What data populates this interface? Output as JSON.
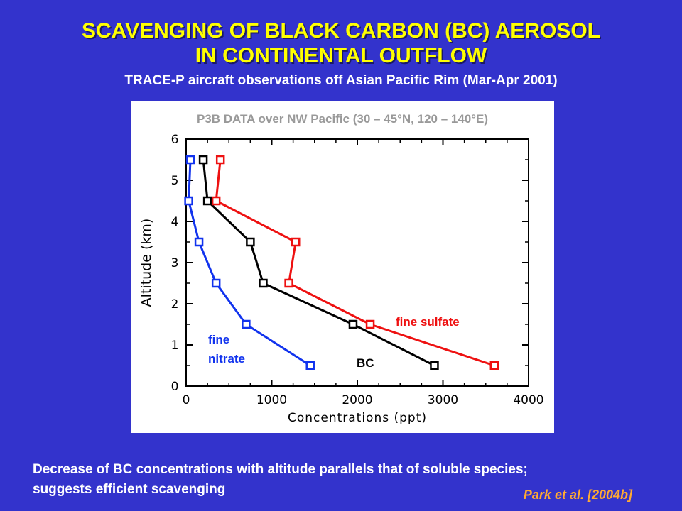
{
  "slide": {
    "title_line1": "SCAVENGING OF BLACK CARBON (BC) AEROSOL",
    "title_line2": "IN CONTINENTAL OUTFLOW",
    "subtitle": "TRACE-P aircraft observations off Asian Pacific Rim (Mar-Apr 2001)",
    "bottom_line1": "Decrease of BC concentrations with altitude parallels that of soluble species;",
    "bottom_line2": "suggests efficient scavenging",
    "credit": "Park et al. [2004b]"
  },
  "colors": {
    "background": "#3333cc",
    "title": "#ffff00",
    "bc": "#000000",
    "sulfate": "#ee1111",
    "nitrate": "#1133ee"
  },
  "chart_data": {
    "type": "line",
    "title": "P3B DATA over NW Pacific (30 – 45°N, 120 – 140°E)",
    "xlabel": "Concentrations (ppt)",
    "ylabel": "Altitude (km)",
    "xlim": [
      0,
      4000
    ],
    "ylim": [
      0,
      6
    ],
    "xticks": [
      0,
      1000,
      2000,
      3000,
      4000
    ],
    "yticks": [
      0,
      1,
      2,
      3,
      4,
      5,
      6
    ],
    "grid": false,
    "series": [
      {
        "name": "BC",
        "color": "#000000",
        "marker": "open-square",
        "x": [
          2900,
          1950,
          900,
          750,
          250,
          200
        ],
        "y": [
          0.5,
          1.5,
          2.5,
          3.5,
          4.5,
          5.5
        ]
      },
      {
        "name": "fine sulfate",
        "color": "#ee1111",
        "marker": "open-square",
        "x": [
          3600,
          2150,
          1200,
          1280,
          350,
          400
        ],
        "y": [
          0.5,
          1.5,
          2.5,
          3.5,
          4.5,
          5.5
        ]
      },
      {
        "name": "fine nitrate",
        "color": "#1133ee",
        "marker": "open-square",
        "x": [
          1450,
          700,
          350,
          150,
          30,
          50
        ],
        "y": [
          0.5,
          1.5,
          2.5,
          3.5,
          4.5,
          5.5
        ]
      }
    ],
    "series_labels": {
      "sulfate": "fine sulfate",
      "nitrate_line1": "fine",
      "nitrate_line2": "nitrate",
      "bc": "BC"
    }
  }
}
